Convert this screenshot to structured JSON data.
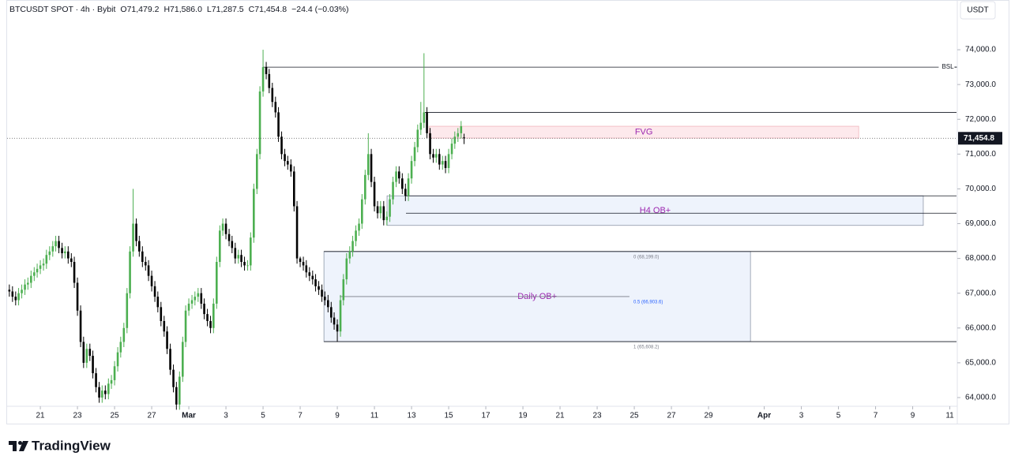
{
  "chart_data": {
    "type": "candlestick",
    "title": "BTCUSDT SPOT · 4h · Bybit",
    "ohlc_text": [
      "O71,479.2",
      "H71,586.0",
      "L71,287.5",
      "C71,454.8",
      "−24.4 (−0.03%)"
    ],
    "currency": "USDT",
    "up_color": "#4caf50",
    "down_color": "#000000",
    "xlim": [
      19.21,
      70.36
    ],
    "ylim": [
      63750,
      75430
    ],
    "xticks": [
      21,
      23,
      25,
      27,
      {
        "value": 29,
        "label": "Mar"
      },
      {
        "value": 31,
        "label": "3"
      },
      {
        "value": 33,
        "label": "5"
      },
      {
        "value": 35,
        "label": "7"
      },
      {
        "value": 37,
        "label": "9"
      },
      {
        "value": 39,
        "label": "11"
      },
      {
        "value": 41,
        "label": "13"
      },
      {
        "value": 43,
        "label": "15"
      },
      {
        "value": 45,
        "label": "17"
      },
      {
        "value": 47,
        "label": "19"
      },
      {
        "value": 49,
        "label": "21"
      },
      {
        "value": 51,
        "label": "23"
      },
      {
        "value": 53,
        "label": "25"
      },
      {
        "value": 55,
        "label": "27"
      },
      {
        "value": 57,
        "label": "29"
      },
      {
        "value": 60,
        "label": "Apr"
      },
      {
        "value": 62,
        "label": "3"
      },
      {
        "value": 64,
        "label": "5"
      },
      {
        "value": 66,
        "label": "7"
      },
      {
        "value": 68,
        "label": "9"
      },
      {
        "value": 70,
        "label": "11"
      }
    ],
    "yticks": [
      {
        "value": 64000,
        "label": "64,000.0"
      },
      {
        "value": 65000,
        "label": "65,000.0"
      },
      {
        "value": 66000,
        "label": "66,000.0"
      },
      {
        "value": 67000,
        "label": "67,000.0"
      },
      {
        "value": 68000,
        "label": "68,000.0"
      },
      {
        "value": 69000,
        "label": "69,000.0"
      },
      {
        "value": 70000,
        "label": "70,000.0"
      },
      {
        "value": 71000,
        "label": "71,000.0"
      },
      {
        "value": 72000,
        "label": "72,000.0"
      },
      {
        "value": 73000,
        "label": "73,000.0"
      },
      {
        "value": 74000,
        "label": "74,000.0"
      }
    ],
    "last_price": {
      "value": 71454.8,
      "label": "71,454.8"
    },
    "candles": {
      "x": [
        19.33,
        19.5,
        19.67,
        19.83,
        20,
        20.17,
        20.33,
        20.5,
        20.67,
        20.83,
        21,
        21.17,
        21.33,
        21.5,
        21.67,
        21.83,
        22,
        22.17,
        22.33,
        22.5,
        22.67,
        22.83,
        23,
        23.17,
        23.33,
        23.5,
        23.67,
        23.83,
        24,
        24.17,
        24.33,
        24.5,
        24.67,
        24.83,
        25,
        25.17,
        25.33,
        25.5,
        25.67,
        25.83,
        26,
        26.17,
        26.33,
        26.5,
        26.67,
        26.83,
        27,
        27.17,
        27.33,
        27.5,
        27.67,
        27.83,
        28,
        28.17,
        28.33,
        28.5,
        28.67,
        28.83,
        29,
        29.17,
        29.33,
        29.5,
        29.67,
        29.83,
        30,
        30.17,
        30.33,
        30.5,
        30.67,
        30.83,
        31,
        31.17,
        31.33,
        31.5,
        31.67,
        31.83,
        32,
        32.17,
        32.33,
        32.5,
        32.67,
        32.83,
        33,
        33.17,
        33.33,
        33.5,
        33.67,
        33.83,
        34,
        34.17,
        34.33,
        34.5,
        34.67,
        34.83,
        35,
        35.17,
        35.33,
        35.5,
        35.67,
        35.83,
        36,
        36.17,
        36.33,
        36.5,
        36.67,
        36.83,
        37,
        37.17,
        37.33,
        37.5,
        37.67,
        37.83,
        38,
        38.17,
        38.33,
        38.5,
        38.67,
        38.83,
        39,
        39.17,
        39.33,
        39.5,
        39.67,
        39.83,
        40,
        40.17,
        40.33,
        40.5,
        40.67,
        40.83,
        41,
        41.17,
        41.33,
        41.5,
        41.67,
        41.83,
        42,
        42.17,
        42.33,
        42.5,
        42.67,
        42.83,
        43,
        43.17,
        43.33,
        43.5,
        43.67,
        43.83
      ],
      "open": [
        67100,
        67050,
        66900,
        66800,
        67000,
        67100,
        67250,
        67300,
        67500,
        67600,
        67700,
        67800,
        67850,
        68100,
        68200,
        68350,
        68500,
        68300,
        68150,
        68200,
        68000,
        67900,
        67300,
        66500,
        65600,
        65000,
        65400,
        65200,
        64700,
        64300,
        64000,
        64200,
        64100,
        64400,
        64500,
        64900,
        65300,
        65600,
        66000,
        67000,
        68200,
        69000,
        68500,
        68200,
        67900,
        67800,
        67500,
        67200,
        66900,
        66600,
        66200,
        65900,
        65400,
        64800,
        64300,
        63800,
        64600,
        65600,
        66500,
        66700,
        66800,
        66900,
        67000,
        66700,
        66400,
        66200,
        66000,
        66700,
        67900,
        68800,
        69000,
        68700,
        68500,
        68300,
        68000,
        68100,
        67900,
        67800,
        67800,
        68600,
        70000,
        71000,
        72800,
        73500,
        73300,
        72900,
        72500,
        72200,
        71500,
        71000,
        70800,
        70700,
        70500,
        69500,
        68000,
        67900,
        67800,
        67600,
        67500,
        67400,
        67200,
        67100,
        66900,
        66800,
        66600,
        66300,
        66100,
        65900,
        66800,
        67400,
        68000,
        68200,
        68500,
        68800,
        69000,
        69700,
        70400,
        71000,
        70200,
        69500,
        69300,
        69500,
        69100,
        69200,
        69700,
        70200,
        70500,
        70300,
        70000,
        69800,
        70300,
        70800,
        71200,
        71700,
        71900,
        72200,
        71600,
        71000,
        70900,
        71000,
        70700,
        70800,
        70600,
        71000,
        71300,
        71500,
        71600,
        71479.2
      ],
      "high": [
        67250,
        67200,
        67050,
        67150,
        67250,
        67400,
        67450,
        67650,
        67750,
        67850,
        67950,
        68000,
        68250,
        68350,
        68500,
        68650,
        68650,
        68450,
        68350,
        68350,
        68150,
        68050,
        67450,
        66650,
        65750,
        65550,
        65550,
        65350,
        64850,
        64450,
        64350,
        64350,
        64550,
        64650,
        65050,
        65450,
        65750,
        66150,
        67150,
        68350,
        70000,
        69150,
        68650,
        68350,
        68050,
        67950,
        67650,
        67350,
        67050,
        66750,
        66350,
        66050,
        65550,
        64950,
        64450,
        64750,
        65750,
        66650,
        66850,
        66950,
        67050,
        67150,
        67150,
        66850,
        66550,
        66350,
        66850,
        68050,
        68950,
        69150,
        69150,
        68850,
        68650,
        68450,
        68250,
        68250,
        68050,
        67950,
        68750,
        70150,
        71150,
        72950,
        74000,
        73650,
        73450,
        73050,
        72650,
        72350,
        71650,
        71150,
        70950,
        70850,
        70650,
        69650,
        68050,
        68050,
        67950,
        67750,
        67650,
        67550,
        67350,
        67250,
        67050,
        66950,
        66750,
        66450,
        66250,
        66950,
        67550,
        68150,
        68350,
        68650,
        68950,
        69150,
        69850,
        70550,
        71600,
        71150,
        70350,
        69650,
        69650,
        69650,
        69350,
        69850,
        70350,
        70650,
        70650,
        70450,
        70150,
        70450,
        70950,
        71350,
        71850,
        72500,
        73900,
        72350,
        71750,
        71150,
        71150,
        71150,
        70950,
        70950,
        71150,
        71450,
        71650,
        71750,
        71950,
        71586
      ],
      "low": [
        66900,
        66750,
        66650,
        66650,
        66850,
        66950,
        67100,
        67150,
        67350,
        67450,
        67550,
        67650,
        67700,
        67950,
        68050,
        68200,
        68150,
        68000,
        68000,
        67850,
        67750,
        67150,
        66350,
        65450,
        64850,
        64850,
        65050,
        64550,
        64150,
        63850,
        63850,
        63950,
        63950,
        64250,
        64350,
        64750,
        65150,
        65450,
        65850,
        66850,
        68050,
        68350,
        68050,
        67750,
        67650,
        67350,
        67050,
        66750,
        66450,
        66050,
        65750,
        65250,
        64650,
        64150,
        63650,
        63650,
        64450,
        65450,
        66350,
        66550,
        66650,
        66750,
        66550,
        66250,
        66050,
        65850,
        65850,
        66550,
        67750,
        68650,
        68550,
        68350,
        68150,
        67850,
        67850,
        67750,
        67650,
        67650,
        67650,
        68450,
        69850,
        70850,
        72650,
        73150,
        72750,
        72350,
        72050,
        71350,
        70850,
        70650,
        70550,
        70350,
        69350,
        67850,
        67750,
        67650,
        67450,
        67350,
        67250,
        67050,
        66950,
        66750,
        66650,
        66450,
        66150,
        65950,
        65600,
        65750,
        66650,
        67250,
        67850,
        68050,
        68350,
        68650,
        68850,
        69550,
        70250,
        70050,
        69350,
        69150,
        69150,
        68950,
        68950,
        69050,
        69550,
        70050,
        70150,
        69850,
        69650,
        69650,
        70150,
        70650,
        71050,
        71550,
        71750,
        71450,
        70850,
        70750,
        70750,
        70550,
        70550,
        70450,
        70450,
        70850,
        71150,
        71350,
        71450,
        71287.5
      ],
      "close": [
        67050,
        66900,
        66800,
        67000,
        67100,
        67250,
        67300,
        67500,
        67600,
        67700,
        67800,
        67850,
        68100,
        68200,
        68350,
        68500,
        68300,
        68150,
        68200,
        68000,
        67900,
        67300,
        66500,
        65600,
        65000,
        65400,
        65200,
        64700,
        64300,
        64000,
        64200,
        64100,
        64400,
        64500,
        64900,
        65300,
        65600,
        66000,
        67000,
        68200,
        69000,
        68500,
        68200,
        67900,
        67800,
        67500,
        67200,
        66900,
        66600,
        66200,
        65900,
        65400,
        64800,
        64300,
        63800,
        64600,
        65600,
        66500,
        66700,
        66800,
        66900,
        67000,
        66700,
        66400,
        66200,
        66000,
        66700,
        67900,
        68800,
        69000,
        68700,
        68500,
        68300,
        68000,
        68100,
        67900,
        67800,
        67800,
        68600,
        70000,
        71000,
        72800,
        73500,
        73300,
        72900,
        72500,
        72200,
        71500,
        71000,
        70800,
        70700,
        70500,
        69500,
        68000,
        67900,
        67800,
        67600,
        67500,
        67400,
        67200,
        67100,
        66900,
        66800,
        66600,
        66300,
        66100,
        65900,
        66800,
        67400,
        68000,
        68200,
        68500,
        68800,
        69000,
        69700,
        70400,
        71000,
        70200,
        69500,
        69300,
        69500,
        69100,
        69200,
        69700,
        70200,
        70500,
        70300,
        70000,
        69800,
        70300,
        70800,
        71200,
        71700,
        71900,
        72200,
        71600,
        71000,
        70900,
        71000,
        70700,
        70800,
        70600,
        71000,
        71300,
        71500,
        71600,
        71800,
        71454.8
      ]
    },
    "levels": [
      {
        "value": 73500,
        "label": "BSL",
        "from": 33.0,
        "to": 69.4
      },
      {
        "value": 72200,
        "from": 41.72
      },
      {
        "value": 69800,
        "from": 40.7
      },
      {
        "value": 69300,
        "from": 40.7
      }
    ],
    "zones": [
      {
        "label": "FVG",
        "top": 71800,
        "bottom": 71460,
        "from": 41.94,
        "to": 65.09,
        "fill": "#fde9ec",
        "stroke": "#f0b4bd"
      },
      {
        "label": "H4 OB+",
        "top": 69800,
        "bottom": 68950,
        "from": 39.68,
        "to": 68.57,
        "fill": "#eef3fc",
        "stroke": "#8e97a8"
      },
      {
        "label": "Daily OB+",
        "top": 68199.0,
        "bottom": 65608.2,
        "from": 36.28,
        "to": 59.26,
        "fill": "#eef3fc",
        "stroke": "#8e97a8"
      }
    ],
    "zone_label_color": "#9c27b0",
    "fib": [
      {
        "value": 68199.0,
        "label": "0 (68,199.0)",
        "from": 36.28,
        "color": "#787b86"
      },
      {
        "value": 66903.6,
        "label": "0.5 (66,903.6)",
        "from": 37.13,
        "to": 52.74,
        "color": "#2962ff"
      },
      {
        "value": 65608.2,
        "label": "1 (65,608.2)",
        "from": 36.28,
        "color": "#787b86"
      }
    ]
  },
  "footer": {
    "brand": "TradingView"
  }
}
